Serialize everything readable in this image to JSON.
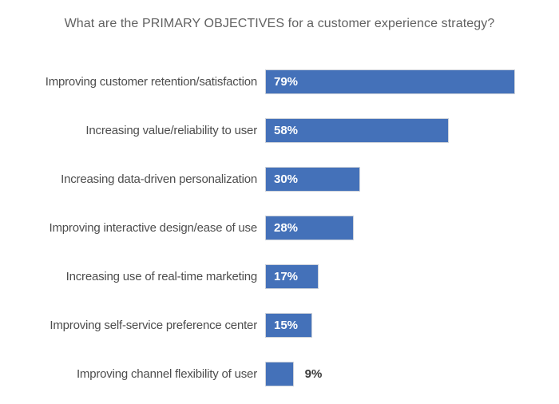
{
  "title": "What are the PRIMARY OBJECTIVES for a customer experience strategy?",
  "colors": {
    "bar": "#4471b9",
    "bar_border": "#cdd2da",
    "value_inside": "#ffffff",
    "value_outside": "#3a3a3a",
    "title": "#616161",
    "label": "#4d4d4d",
    "background": "#ffffff"
  },
  "chart_data": {
    "type": "bar",
    "orientation": "horizontal",
    "title": "What are the PRIMARY OBJECTIVES for a customer experience strategy?",
    "categories": [
      "Improving customer retention/satisfaction",
      "Increasing value/reliability to user",
      "Increasing data-driven personalization",
      "Improving interactive design/ease of use",
      "Increasing use of real-time marketing",
      "Improving self-service preference center",
      "Improving channel flexibility of user"
    ],
    "values": [
      79,
      58,
      30,
      28,
      17,
      15,
      9
    ],
    "value_suffix": "%",
    "xlabel": "",
    "ylabel": "",
    "xlim": [
      0,
      80
    ],
    "grid": false,
    "legend": false,
    "data_label_position": "inside-start; outside-end when bar too short"
  }
}
